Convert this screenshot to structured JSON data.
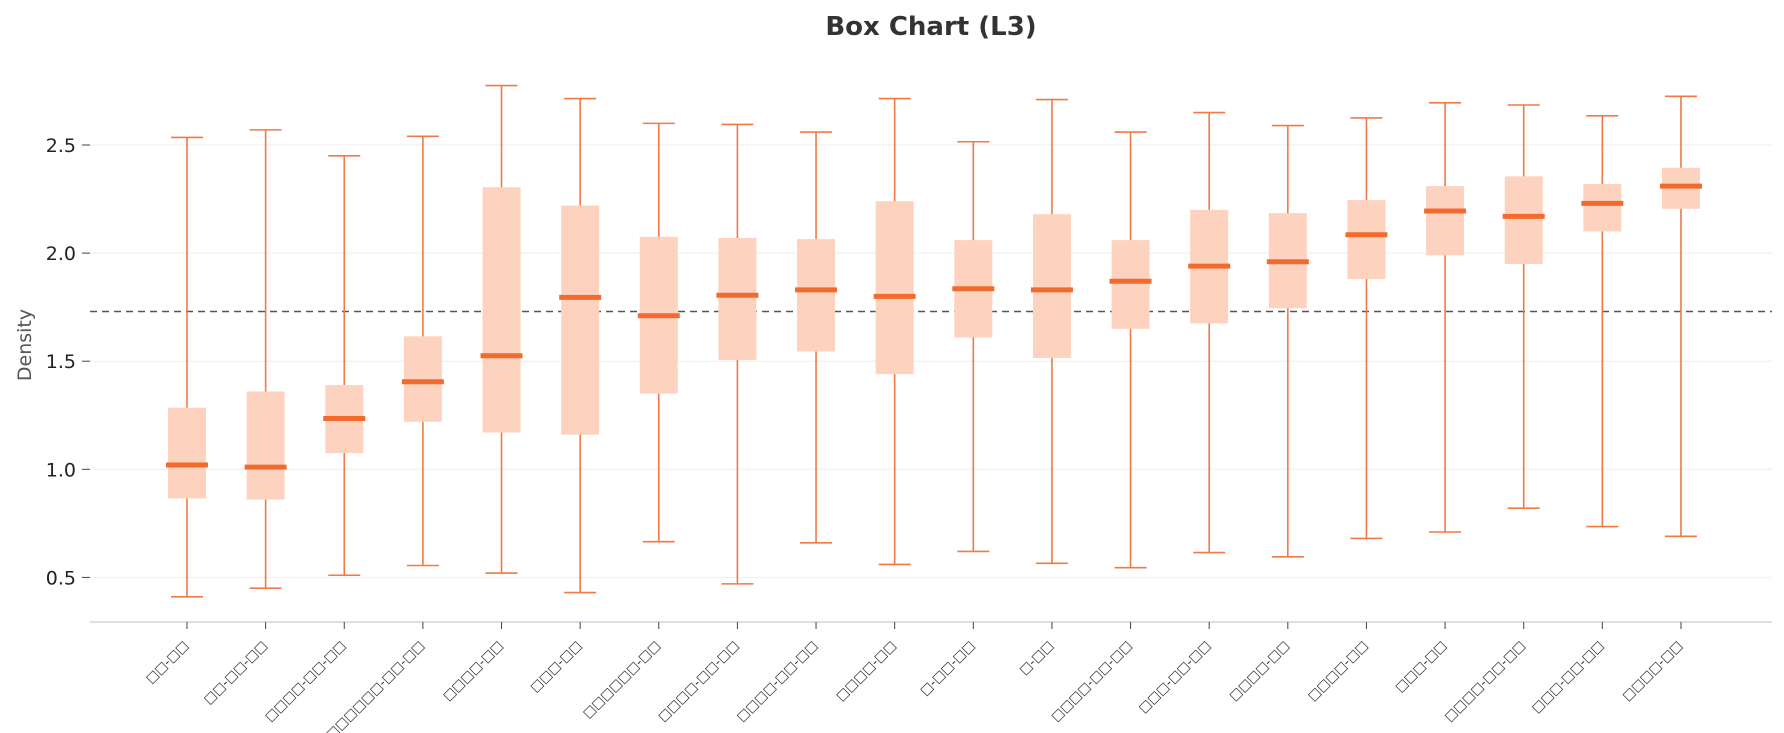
{
  "chart_data": {
    "type": "box",
    "title": "Box Chart (L3)",
    "xlabel": "",
    "ylabel": "Density",
    "ylim": [
      0.3,
      2.82
    ],
    "yticks": [
      0.5,
      1.0,
      1.5,
      2.0,
      2.5
    ],
    "ytick_labels": [
      "0.5",
      "1.0",
      "1.5",
      "2.0",
      "2.5"
    ],
    "grid": "horizontal",
    "reference_line": 1.73,
    "colors": {
      "box": "#fdd3c0",
      "median": "#f26b2e",
      "whisker": "#f07a45",
      "reference": "#555555",
      "grid": "#eeeeee"
    },
    "categories": [
      "□□-□□",
      "□□-□□-□□",
      "□□□□-□□-□□",
      "□□□□□□-□□-□□",
      "□□□□-□□",
      "□□□-□□",
      "□□□□□□-□□",
      "□□□□-□□-□□",
      "□□□□-□□-□□",
      "□□□□-□□",
      "□-□□-□□",
      "□-□□",
      "□□□□-□□-□□",
      "□□□-□□-□□",
      "□□□□-□□",
      "□□□□-□□",
      "□□□-□□",
      "□□□□-□□-□□",
      "□□□-□□-□□",
      "□□□□-□□"
    ],
    "boxes": [
      {
        "min": 0.41,
        "q1": 0.865,
        "median": 1.02,
        "q3": 1.285,
        "max": 2.535
      },
      {
        "min": 0.45,
        "q1": 0.86,
        "median": 1.01,
        "q3": 1.36,
        "max": 2.57
      },
      {
        "min": 0.51,
        "q1": 1.075,
        "median": 1.235,
        "q3": 1.39,
        "max": 2.45
      },
      {
        "min": 0.555,
        "q1": 1.22,
        "median": 1.405,
        "q3": 1.615,
        "max": 2.54
      },
      {
        "min": 0.52,
        "q1": 1.17,
        "median": 1.525,
        "q3": 2.305,
        "max": 2.775
      },
      {
        "min": 0.43,
        "q1": 1.16,
        "median": 1.795,
        "q3": 2.22,
        "max": 2.715
      },
      {
        "min": 0.665,
        "q1": 1.35,
        "median": 1.71,
        "q3": 2.075,
        "max": 2.6
      },
      {
        "min": 0.47,
        "q1": 1.505,
        "median": 1.805,
        "q3": 2.07,
        "max": 2.595
      },
      {
        "min": 0.66,
        "q1": 1.545,
        "median": 1.83,
        "q3": 2.065,
        "max": 2.56
      },
      {
        "min": 0.56,
        "q1": 1.44,
        "median": 1.8,
        "q3": 2.24,
        "max": 2.715
      },
      {
        "min": 0.62,
        "q1": 1.61,
        "median": 1.835,
        "q3": 2.06,
        "max": 2.515
      },
      {
        "min": 0.565,
        "q1": 1.515,
        "median": 1.83,
        "q3": 2.18,
        "max": 2.71
      },
      {
        "min": 0.545,
        "q1": 1.65,
        "median": 1.87,
        "q3": 2.06,
        "max": 2.56
      },
      {
        "min": 0.615,
        "q1": 1.675,
        "median": 1.94,
        "q3": 2.2,
        "max": 2.65
      },
      {
        "min": 0.595,
        "q1": 1.745,
        "median": 1.96,
        "q3": 2.185,
        "max": 2.59
      },
      {
        "min": 0.68,
        "q1": 1.88,
        "median": 2.085,
        "q3": 2.245,
        "max": 2.625
      },
      {
        "min": 0.71,
        "q1": 1.99,
        "median": 2.195,
        "q3": 2.31,
        "max": 2.695
      },
      {
        "min": 0.82,
        "q1": 1.95,
        "median": 2.17,
        "q3": 2.355,
        "max": 2.685
      },
      {
        "min": 0.735,
        "q1": 2.1,
        "median": 2.23,
        "q3": 2.32,
        "max": 2.635
      },
      {
        "min": 0.69,
        "q1": 2.205,
        "median": 2.31,
        "q3": 2.395,
        "max": 2.725
      }
    ]
  }
}
